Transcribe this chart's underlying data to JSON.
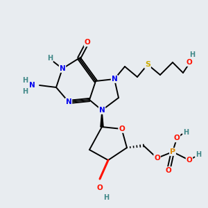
{
  "bg_color": "#e8ecf0",
  "bond_color": "#000000",
  "atom_colors": {
    "N": "#0000ee",
    "O": "#ff1100",
    "S": "#ccaa00",
    "P": "#dd8800",
    "C": "#000000",
    "H": "#408888"
  }
}
